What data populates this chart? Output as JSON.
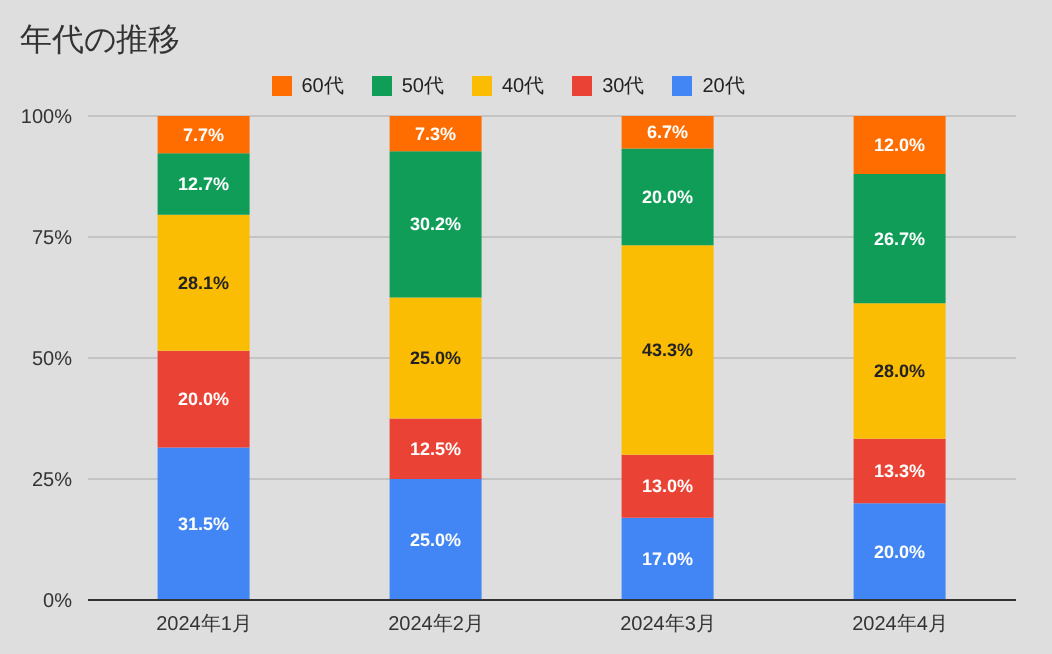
{
  "chart_data": {
    "type": "bar",
    "title": "年代の推移",
    "categories": [
      "2024年1月",
      "2024年2月",
      "2024年3月",
      "2024年4月"
    ],
    "stacked": true,
    "ylim": [
      0,
      100
    ],
    "yticks": [
      {
        "value": 0,
        "label": "0%"
      },
      {
        "value": 25,
        "label": "25%"
      },
      {
        "value": 50,
        "label": "50%"
      },
      {
        "value": 75,
        "label": "75%"
      },
      {
        "value": 100,
        "label": "100%"
      }
    ],
    "grid": "y",
    "legend": "top",
    "series": [
      {
        "name": "20代",
        "color": "#4285f4",
        "values": [
          31.5,
          25.0,
          17.0,
          20.0
        ],
        "value_labels": [
          "31.5%",
          "25.0%",
          "17.0%",
          "20.0%"
        ]
      },
      {
        "name": "30代",
        "color": "#ea4335",
        "values": [
          20.0,
          12.5,
          13.0,
          13.3
        ],
        "value_labels": [
          "20.0%",
          "12.5%",
          "13.0%",
          "13.3%"
        ]
      },
      {
        "name": "40代",
        "color": "#fbbc04",
        "values": [
          28.1,
          25.0,
          43.3,
          28.0
        ],
        "value_labels": [
          "28.1%",
          "25.0%",
          "43.3%",
          "28.0%"
        ]
      },
      {
        "name": "50代",
        "color": "#0f9d58",
        "values": [
          12.7,
          30.2,
          20.0,
          26.7
        ],
        "value_labels": [
          "12.7%",
          "30.2%",
          "20.0%",
          "26.7%"
        ]
      },
      {
        "name": "60代",
        "color": "#ff6d01",
        "values": [
          7.7,
          7.3,
          6.7,
          12.0
        ],
        "value_labels": [
          "7.7%",
          "7.3%",
          "6.7%",
          "12.0%"
        ]
      }
    ]
  }
}
